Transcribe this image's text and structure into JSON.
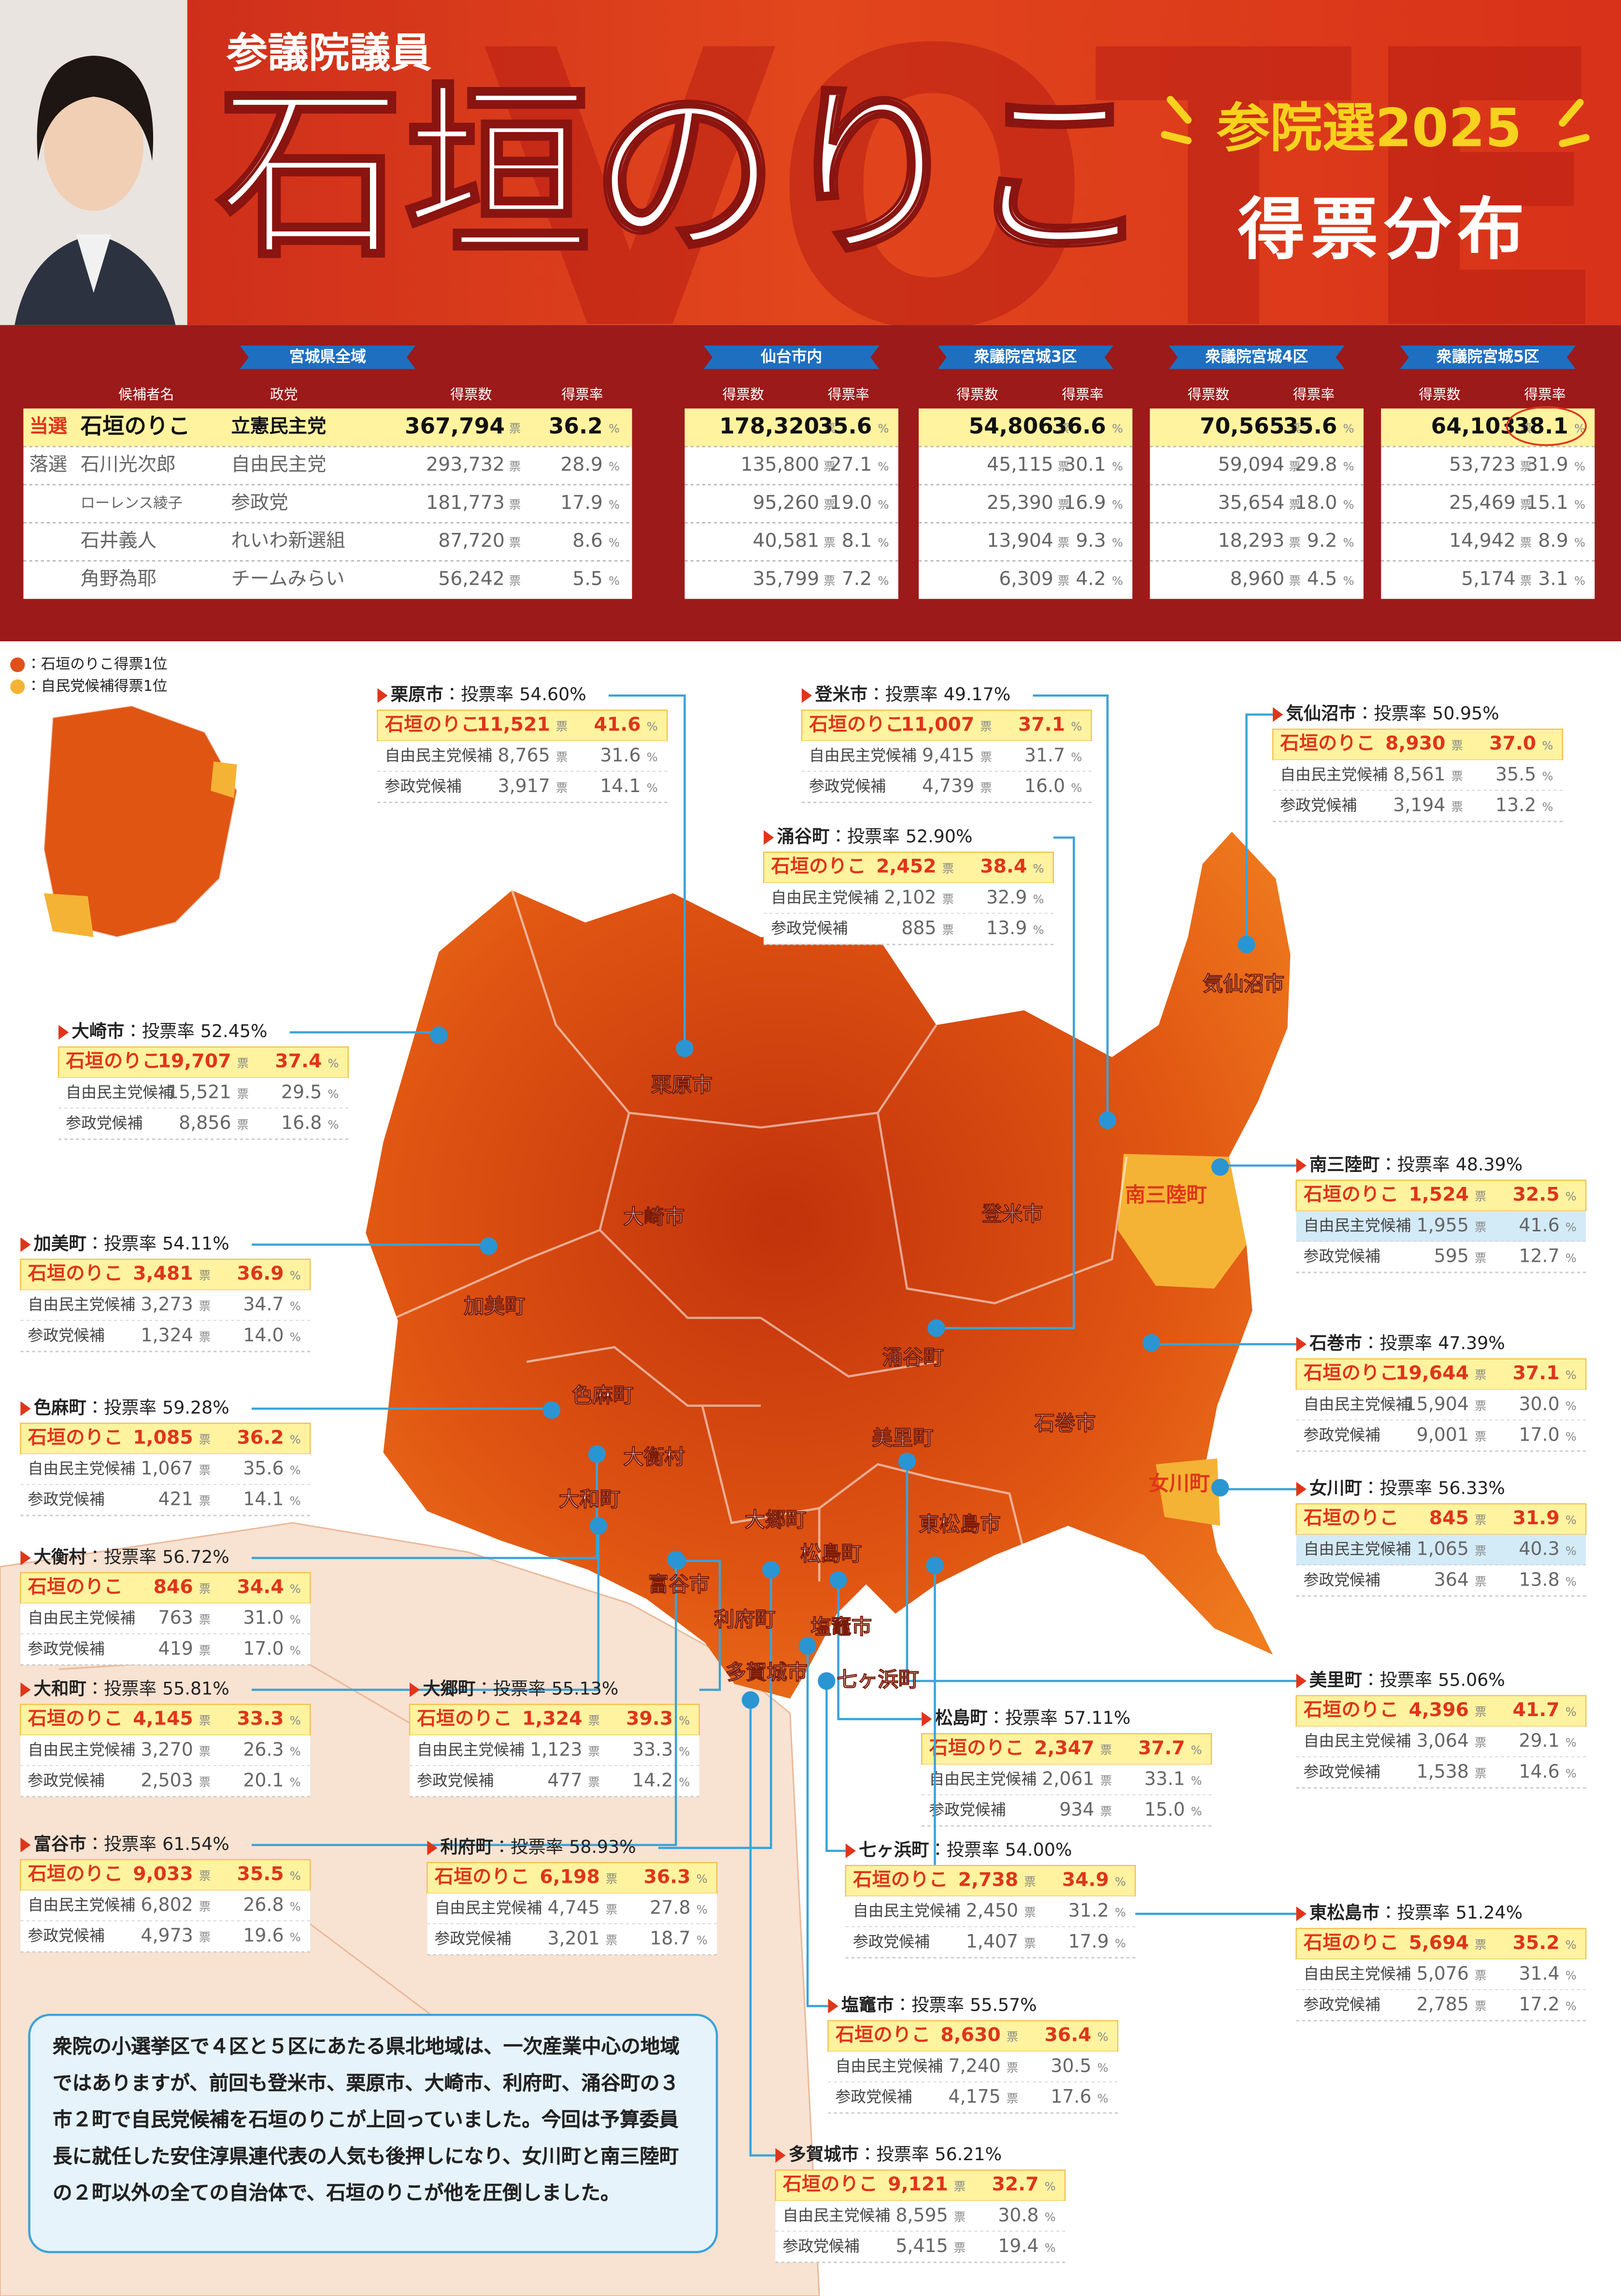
{
  "header": {
    "subtitle": "参議院議員",
    "name": "石垣のりこ",
    "election": "参院選2025",
    "title": "得票分布"
  },
  "table": {
    "regions": [
      "宮城県全域",
      "仙台市内",
      "衆議院宮城3区",
      "衆議院宮城4区",
      "衆議院宮城5区"
    ],
    "columns": {
      "candidate": "候補者名",
      "party": "政党",
      "votes": "得票数",
      "rate": "得票率"
    },
    "units": {
      "votes": "票",
      "rate": "%"
    },
    "rows": [
      {
        "status": "当選",
        "name": "石垣のりこ",
        "party": "立憲民主党",
        "results": [
          [
            "367,794",
            "36.2"
          ],
          [
            "178,320",
            "35.6"
          ],
          [
            "54,806",
            "36.6"
          ],
          [
            "70,565",
            "35.6"
          ],
          [
            "64,103",
            "38.1"
          ]
        ]
      },
      {
        "status": "落選",
        "name": "石川光次郎",
        "party": "自由民主党",
        "results": [
          [
            "293,732",
            "28.9"
          ],
          [
            "135,800",
            "27.1"
          ],
          [
            "45,115",
            "30.1"
          ],
          [
            "59,094",
            "29.8"
          ],
          [
            "53,723",
            "31.9"
          ]
        ]
      },
      {
        "name": "ローレンス綾子",
        "party": "参政党",
        "results": [
          [
            "181,773",
            "17.9"
          ],
          [
            "95,260",
            "19.0"
          ],
          [
            "25,390",
            "16.9"
          ],
          [
            "35,654",
            "18.0"
          ],
          [
            "25,469",
            "15.1"
          ]
        ]
      },
      {
        "name": "石井義人",
        "party": "れいわ新選組",
        "results": [
          [
            "87,720",
            "8.6"
          ],
          [
            "40,581",
            "8.1"
          ],
          [
            "13,904",
            "9.3"
          ],
          [
            "18,293",
            "9.2"
          ],
          [
            "14,942",
            "8.9"
          ]
        ]
      },
      {
        "name": "角野為耶",
        "party": "チームみらい",
        "results": [
          [
            "56,242",
            "5.5"
          ],
          [
            "35,799",
            "7.2"
          ],
          [
            "6,309",
            "4.2"
          ],
          [
            "8,960",
            "4.5"
          ],
          [
            "5,174",
            "3.1"
          ]
        ]
      }
    ]
  },
  "legend": [
    {
      "label": "：石垣のりこ得票1位",
      "color": "#e0501a"
    },
    {
      "label": "：自民党候補得票1位",
      "color": "#f5b335"
    }
  ],
  "municipalities": {
    "turnout_label": "投票率",
    "separator": "：",
    "row_labels": [
      "石垣のりこ",
      "自由民主党候補",
      "参政党候補"
    ],
    "items": [
      {
        "name": "栗原市",
        "turnout": "54.60%",
        "rows": [
          [
            "11,521",
            "41.6"
          ],
          [
            "8,765",
            "31.6"
          ],
          [
            "3,917",
            "14.1"
          ]
        ]
      },
      {
        "name": "登米市",
        "turnout": "49.17%",
        "rows": [
          [
            "11,007",
            "37.1"
          ],
          [
            "9,415",
            "31.7"
          ],
          [
            "4,739",
            "16.0"
          ]
        ]
      },
      {
        "name": "気仙沼市",
        "turnout": "50.95%",
        "rows": [
          [
            "8,930",
            "37.0"
          ],
          [
            "8,561",
            "35.5"
          ],
          [
            "3,194",
            "13.2"
          ]
        ]
      },
      {
        "name": "涌谷町",
        "turnout": "52.90%",
        "rows": [
          [
            "2,452",
            "38.4"
          ],
          [
            "2,102",
            "32.9"
          ],
          [
            "885",
            "13.9"
          ]
        ]
      },
      {
        "name": "大崎市",
        "turnout": "52.45%",
        "rows": [
          [
            "19,707",
            "37.4"
          ],
          [
            "15,521",
            "29.5"
          ],
          [
            "8,856",
            "16.8"
          ]
        ]
      },
      {
        "name": "南三陸町",
        "turnout": "48.39%",
        "rows": [
          [
            "1,524",
            "32.5"
          ],
          [
            "1,955",
            "41.6"
          ],
          [
            "595",
            "12.7"
          ]
        ]
      },
      {
        "name": "加美町",
        "turnout": "54.11%",
        "rows": [
          [
            "3,481",
            "36.9"
          ],
          [
            "3,273",
            "34.7"
          ],
          [
            "1,324",
            "14.0"
          ]
        ]
      },
      {
        "name": "石巻市",
        "turnout": "47.39%",
        "rows": [
          [
            "19,644",
            "37.1"
          ],
          [
            "15,904",
            "30.0"
          ],
          [
            "9,001",
            "17.0"
          ]
        ]
      },
      {
        "name": "色麻町",
        "turnout": "59.28%",
        "rows": [
          [
            "1,085",
            "36.2"
          ],
          [
            "1,067",
            "35.6"
          ],
          [
            "421",
            "14.1"
          ]
        ]
      },
      {
        "name": "女川町",
        "turnout": "56.33%",
        "rows": [
          [
            "845",
            "31.9"
          ],
          [
            "1,065",
            "40.3"
          ],
          [
            "364",
            "13.8"
          ]
        ]
      },
      {
        "name": "大衡村",
        "turnout": "56.72%",
        "rows": [
          [
            "846",
            "34.4"
          ],
          [
            "763",
            "31.0"
          ],
          [
            "419",
            "17.0"
          ]
        ]
      },
      {
        "name": "大和町",
        "turnout": "55.81%",
        "rows": [
          [
            "4,145",
            "33.3"
          ],
          [
            "3,270",
            "26.3"
          ],
          [
            "2,503",
            "20.1"
          ]
        ]
      },
      {
        "name": "大郷町",
        "turnout": "55.13%",
        "rows": [
          [
            "1,324",
            "39.3"
          ],
          [
            "1,123",
            "33.3"
          ],
          [
            "477",
            "14.2"
          ]
        ]
      },
      {
        "name": "美里町",
        "turnout": "55.06%",
        "rows": [
          [
            "4,396",
            "41.7"
          ],
          [
            "3,064",
            "29.1"
          ],
          [
            "1,538",
            "14.6"
          ]
        ]
      },
      {
        "name": "松島町",
        "turnout": "57.11%",
        "rows": [
          [
            "2,347",
            "37.7"
          ],
          [
            "2,061",
            "33.1"
          ],
          [
            "934",
            "15.0"
          ]
        ]
      },
      {
        "name": "東松島市",
        "turnout": "51.24%",
        "rows": [
          [
            "5,694",
            "35.2"
          ],
          [
            "5,076",
            "31.4"
          ],
          [
            "2,785",
            "17.2"
          ]
        ]
      },
      {
        "name": "富谷市",
        "turnout": "61.54%",
        "rows": [
          [
            "9,033",
            "35.5"
          ],
          [
            "6,802",
            "26.8"
          ],
          [
            "4,973",
            "19.6"
          ]
        ]
      },
      {
        "name": "利府町",
        "turnout": "58.93%",
        "rows": [
          [
            "6,198",
            "36.3"
          ],
          [
            "4,745",
            "27.8"
          ],
          [
            "3,201",
            "18.7"
          ]
        ]
      },
      {
        "name": "七ヶ浜町",
        "turnout": "54.00%",
        "rows": [
          [
            "2,738",
            "34.9"
          ],
          [
            "2,450",
            "31.2"
          ],
          [
            "1,407",
            "17.9"
          ]
        ]
      },
      {
        "name": "塩竈市",
        "turnout": "55.57%",
        "rows": [
          [
            "8,630",
            "36.4"
          ],
          [
            "7,240",
            "30.5"
          ],
          [
            "4,175",
            "17.6"
          ]
        ]
      },
      {
        "name": "多賀城市",
        "turnout": "56.21%",
        "rows": [
          [
            "9,121",
            "32.7"
          ],
          [
            "8,595",
            "30.8"
          ],
          [
            "5,415",
            "19.4"
          ]
        ]
      }
    ]
  },
  "note": "衆院の小選挙区で４区と５区にあたる県北地域は、一次産業中心の地域ではありますが、前回も登米市、栗原市、大崎市、利府町、涌谷町の３市２町で自民党候補を石垣のりこが上回っていました。今回は予算委員長に就任した安住淳県連代表の人気も後押しになり、女川町と南三陸町の２町以外の全ての自治体で、石垣のりこが他を圧倒しました。"
}
